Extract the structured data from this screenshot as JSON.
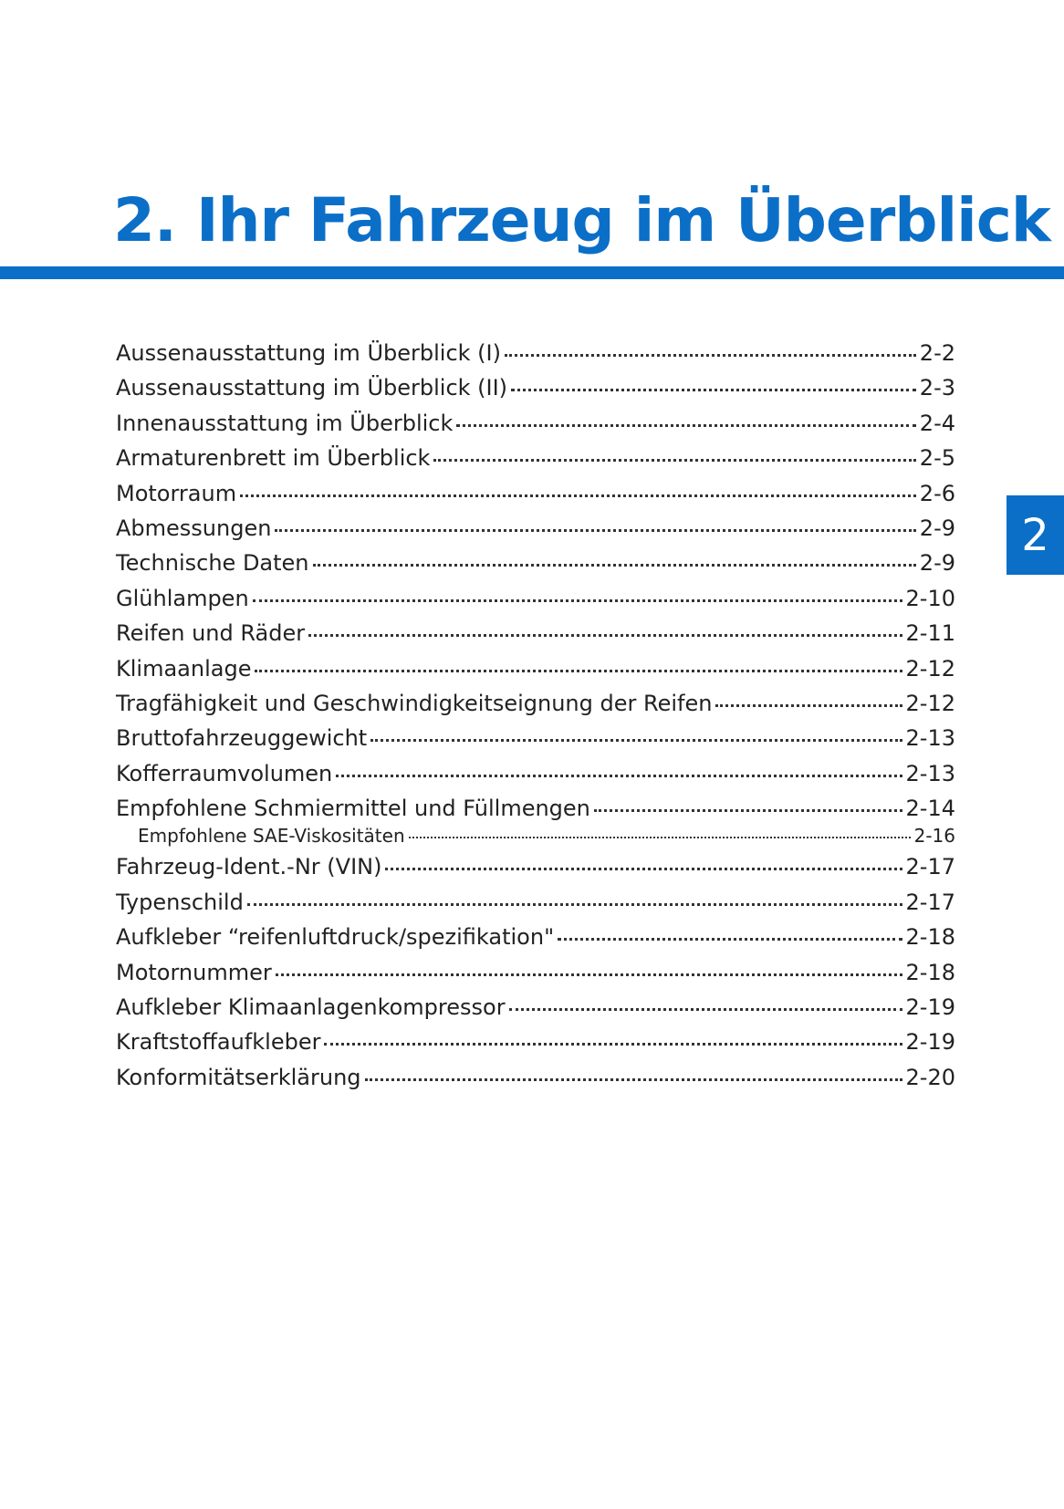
{
  "header": {
    "title": "2. Ihr Fahrzeug im Überblick"
  },
  "tab": {
    "label": "2"
  },
  "toc": {
    "entries": [
      {
        "title": "Aussenausstattung im Überblick (I)",
        "page": "2-2"
      },
      {
        "title": "Aussenausstattung im Überblick (II)",
        "page": "2-3"
      },
      {
        "title": "Innenausstattung im Überblick",
        "page": "2-4"
      },
      {
        "title": "Armaturenbrett im Überblick",
        "page": "2-5"
      },
      {
        "title": "Motorraum",
        "page": "2-6"
      },
      {
        "title": "Abmessungen",
        "page": "2-9"
      },
      {
        "title": "Technische Daten",
        "page": "2-9"
      },
      {
        "title": "Glühlampen",
        "page": "2-10"
      },
      {
        "title": "Reifen und Räder",
        "page": "2-11"
      },
      {
        "title": "Klimaanlage",
        "page": "2-12"
      },
      {
        "title": "Tragfähigkeit und Geschwindigkeitseignung der Reifen",
        "page": "2-12"
      },
      {
        "title": "Bruttofahrzeuggewicht",
        "page": "2-13"
      },
      {
        "title": "Kofferraumvolumen",
        "page": "2-13"
      },
      {
        "title": "Empfohlene Schmiermittel und Füllmengen",
        "page": "2-14",
        "subentries": [
          {
            "title": "Empfohlene SAE-Viskositäten",
            "page": "2-16"
          }
        ]
      },
      {
        "title": "Fahrzeug-Ident.-Nr (VIN)",
        "page": "2-17"
      },
      {
        "title": "Typenschild",
        "page": "2-17"
      },
      {
        "title": "Aufkleber “reifenluftdruck/spezifikation\"",
        "page": "2-18"
      },
      {
        "title": "Motornummer",
        "page": "2-18"
      },
      {
        "title": "Aufkleber Klimaanlagenkompressor",
        "page": "2-19"
      },
      {
        "title": "Kraftstoffaufkleber",
        "page": "2-19"
      },
      {
        "title": "Konformitätserklärung",
        "page": "2-20"
      }
    ]
  }
}
